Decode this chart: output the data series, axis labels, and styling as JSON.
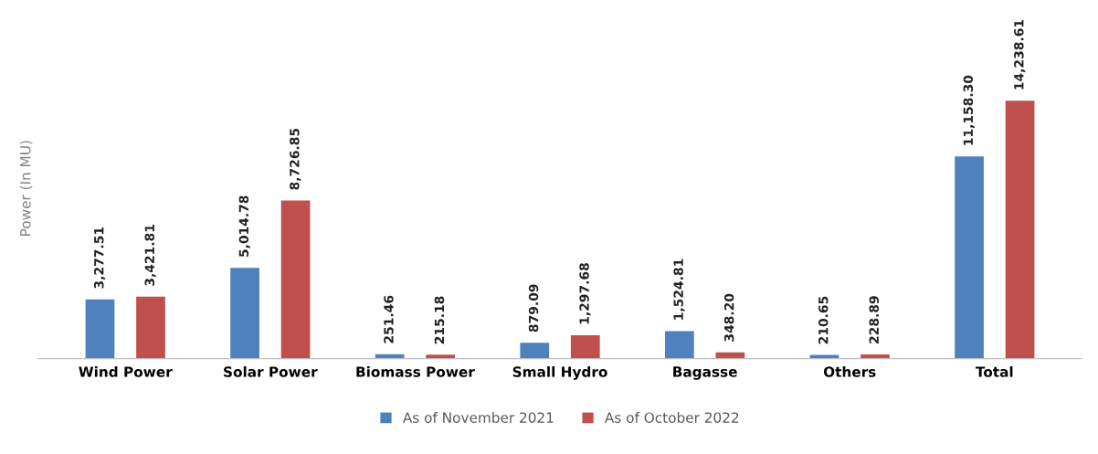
{
  "chart_data": {
    "type": "bar",
    "ylabel": "Power (In MU)",
    "categories": [
      "Wind Power",
      "Solar Power",
      "Biomass Power",
      "Small Hydro",
      "Bagasse",
      "Others",
      "Total"
    ],
    "series": [
      {
        "name": "As of November 2021",
        "color": "#4f81bd",
        "values": [
          3277.51,
          5014.78,
          251.46,
          879.09,
          1524.81,
          210.65,
          11158.3
        ],
        "value_labels": [
          "3,277.51",
          "5,014.78",
          "251.46",
          "879.09",
          "1,524.81",
          "210.65",
          "11,158.30"
        ]
      },
      {
        "name": "As of October 2022",
        "color": "#c0504d",
        "values": [
          3421.81,
          8726.85,
          215.18,
          1297.68,
          348.2,
          228.89,
          14238.61
        ],
        "value_labels": [
          "3,421.81",
          "8,726.85",
          "215.18",
          "1,297.68",
          "348.20",
          "228.89",
          "14,238.61"
        ]
      }
    ],
    "tick_labels": "x",
    "grid": false,
    "legend": "bottom"
  }
}
